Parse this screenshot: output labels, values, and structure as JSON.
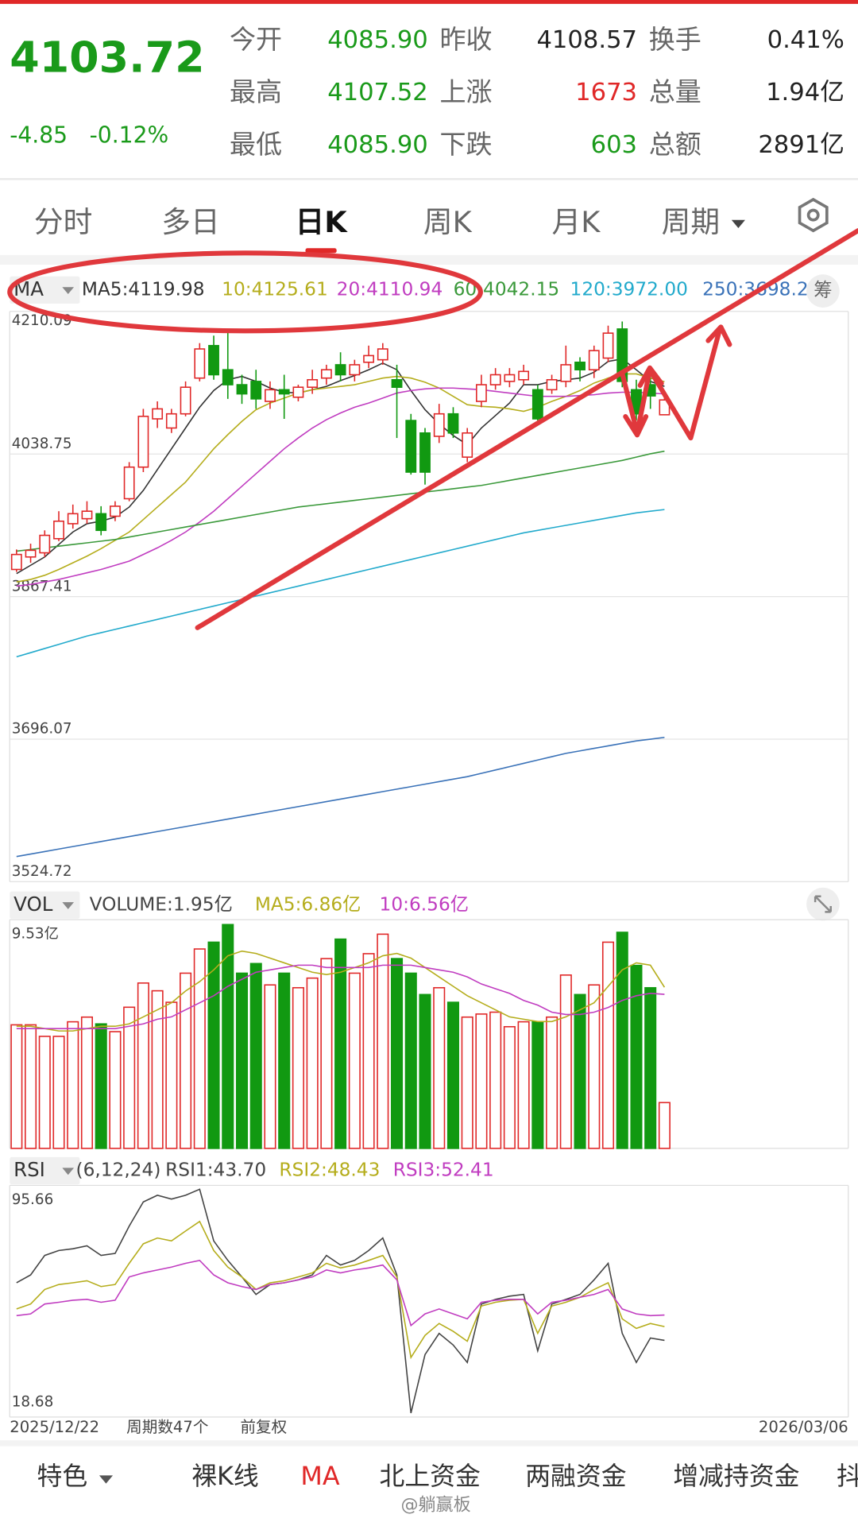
{
  "quote": {
    "price": "4103.72",
    "change": "-4.85",
    "change_pct": "-0.12%",
    "stats": [
      [
        {
          "label": "今开",
          "value": "4085.90",
          "color": "#1a9a1a"
        },
        {
          "label": "昨收",
          "value": "4108.57",
          "color": "#222"
        },
        {
          "label": "换手",
          "value": "0.41%",
          "color": "#222"
        }
      ],
      [
        {
          "label": "最高",
          "value": "4107.52",
          "color": "#1a9a1a"
        },
        {
          "label": "上涨",
          "value": "1673",
          "color": "#e02828"
        },
        {
          "label": "总量",
          "value": "1.94亿",
          "color": "#222"
        }
      ],
      [
        {
          "label": "最低",
          "value": "4085.90",
          "color": "#1a9a1a"
        },
        {
          "label": "下跌",
          "value": "603",
          "color": "#1a9a1a"
        },
        {
          "label": "总额",
          "value": "2891亿",
          "color": "#222"
        }
      ]
    ]
  },
  "tabs": [
    "分时",
    "多日",
    "日K",
    "周K",
    "月K",
    "周期"
  ],
  "kline": {
    "selector": "MA",
    "chip_button": "筹",
    "ylim": [
      3524.72,
      4210.09
    ],
    "yticks": [
      4210.09,
      4038.75,
      3867.41,
      3696.07,
      3524.72
    ],
    "candles": {
      "open": [
        3900,
        3915,
        3920,
        3937,
        3955,
        3961,
        3967,
        3964,
        3985,
        4023,
        4081,
        4070,
        4087,
        4130,
        4169,
        4140,
        4122,
        4126,
        4102,
        4116,
        4107,
        4119,
        4130,
        4146,
        4134,
        4149,
        4152,
        4128,
        4079,
        4064,
        4060,
        4087,
        4035,
        4102,
        4122,
        4126,
        4128,
        4116,
        4116,
        4126,
        4149,
        4140,
        4154,
        4189,
        4116,
        4122,
        4085.9
      ],
      "close": [
        3918,
        3923,
        3941,
        3958,
        3967,
        3970,
        3947,
        3976,
        4023,
        4084,
        4093,
        4087,
        4119,
        4165,
        4134,
        4122,
        4111,
        4105,
        4116,
        4111,
        4119,
        4128,
        4140,
        4134,
        4146,
        4157,
        4165,
        4119,
        4017,
        4017,
        4087,
        4064,
        4064,
        4122,
        4134,
        4134,
        4138,
        4081,
        4128,
        4146,
        4140,
        4163,
        4184,
        4126,
        4087,
        4108.57,
        4103.72
      ],
      "high": [
        3924,
        3931,
        3947,
        3970,
        3978,
        3982,
        3976,
        3982,
        4029,
        4093,
        4102,
        4093,
        4126,
        4172,
        4181,
        4187,
        4134,
        4140,
        4126,
        4134,
        4122,
        4140,
        4146,
        4161,
        4152,
        4169,
        4172,
        4146,
        4087,
        4070,
        4099,
        4095,
        4070,
        4134,
        4142,
        4142,
        4146,
        4122,
        4134,
        4169,
        4155,
        4169,
        4193,
        4198,
        4128,
        4134,
        4107.52
      ],
      "low": [
        3897,
        3908,
        3915,
        3934,
        3949,
        3955,
        3941,
        3958,
        3982,
        4017,
        4070,
        4064,
        4084,
        4126,
        4128,
        4105,
        4099,
        4093,
        4093,
        4081,
        4102,
        4111,
        4122,
        4126,
        4126,
        4142,
        4146,
        4058,
        4014,
        4002,
        4052,
        4058,
        4029,
        4095,
        4116,
        4119,
        4122,
        4079,
        4111,
        4119,
        4126,
        4130,
        4149,
        4119,
        4079,
        4093,
        4085.9
      ]
    },
    "ma_series": [
      {
        "label": "MA5:4119.98",
        "color": "#333333",
        "values": [
          3895,
          3905,
          3915,
          3930,
          3945,
          3955,
          3958,
          3963,
          3975,
          3995,
          4020,
          4045,
          4070,
          4095,
          4115,
          4128,
          4132,
          4126,
          4118,
          4113,
          4112,
          4116,
          4120,
          4127,
          4133,
          4140,
          4148,
          4140,
          4115,
          4092,
          4075,
          4061,
          4050,
          4070,
          4085,
          4100,
          4122,
          4122,
          4126,
          4128,
          4130,
          4137,
          4150,
          4153,
          4140,
          4126,
          4119.98
        ]
      },
      {
        "label": "10:4125.61",
        "color": "#b5ad1c",
        "values": [
          3885,
          3888,
          3893,
          3900,
          3908,
          3916,
          3925,
          3935,
          3945,
          3960,
          3975,
          3990,
          4005,
          4025,
          4045,
          4062,
          4078,
          4092,
          4100,
          4106,
          4112,
          4116,
          4118,
          4120,
          4122,
          4126,
          4130,
          4132,
          4130,
          4125,
          4118,
          4108,
          4098,
          4096,
          4095,
          4093,
          4090,
          4095,
          4102,
          4108,
          4115,
          4124,
          4130,
          4135,
          4135,
          4130,
          4125.61
        ]
      },
      {
        "label": "20:4110.94",
        "color": "#c03cc0",
        "values": [
          3880,
          3882,
          3885,
          3888,
          3892,
          3896,
          3900,
          3905,
          3910,
          3918,
          3926,
          3935,
          3945,
          3957,
          3970,
          3985,
          4000,
          4015,
          4030,
          4045,
          4058,
          4070,
          4080,
          4088,
          4095,
          4100,
          4106,
          4112,
          4115,
          4117,
          4118,
          4118,
          4117,
          4116,
          4114,
          4112,
          4110,
          4108,
          4108,
          4108,
          4109,
          4110,
          4112,
          4113,
          4113,
          4112,
          4110.94
        ]
      },
      {
        "label": "60:4042.15",
        "color": "#3a993a",
        "values": [
          3922,
          3924,
          3926,
          3928,
          3930,
          3932,
          3934,
          3936,
          3939,
          3942,
          3945,
          3948,
          3951,
          3954,
          3957,
          3960,
          3963,
          3966,
          3969,
          3972,
          3975,
          3977,
          3979,
          3981,
          3983,
          3985,
          3987,
          3989,
          3991,
          3993,
          3995,
          3997,
          3999,
          4001,
          4004,
          4007,
          4010,
          4013,
          4016,
          4019,
          4022,
          4025,
          4028,
          4031,
          4035,
          4039,
          4042.15
        ]
      },
      {
        "label": "120:3972.00",
        "color": "#22aacc",
        "values": [
          3795,
          3800,
          3805,
          3810,
          3815,
          3820,
          3824,
          3828,
          3832,
          3836,
          3840,
          3844,
          3848,
          3852,
          3856,
          3860,
          3864,
          3868,
          3872,
          3876,
          3880,
          3884,
          3888,
          3892,
          3896,
          3900,
          3904,
          3908,
          3912,
          3916,
          3920,
          3924,
          3928,
          3932,
          3936,
          3940,
          3944,
          3947,
          3950,
          3953,
          3956,
          3959,
          3962,
          3965,
          3968,
          3970,
          3972.0
        ]
      },
      {
        "label": "250:3698.2",
        "color": "#3a72b8",
        "values": [
          3555,
          3558,
          3561,
          3564,
          3567,
          3570,
          3573,
          3576,
          3579,
          3582,
          3585,
          3588,
          3591,
          3594,
          3597,
          3600,
          3603,
          3606,
          3609,
          3612,
          3615,
          3618,
          3621,
          3624,
          3627,
          3630,
          3633,
          3636,
          3639,
          3642,
          3645,
          3648,
          3651,
          3655,
          3659,
          3663,
          3667,
          3671,
          3675,
          3679,
          3682,
          3685,
          3688,
          3691,
          3694,
          3696,
          3698.2
        ]
      }
    ]
  },
  "volume": {
    "selector": "VOL",
    "label": "VOLUME:1.95亿",
    "ylim": [
      0,
      9.53
    ],
    "yticks": [
      {
        "value": 9.53,
        "label": "9.53亿"
      }
    ],
    "values": [
      5.26,
      5.26,
      4.77,
      4.77,
      5.39,
      5.59,
      5.3,
      4.97,
      6.01,
      7.04,
      6.71,
      6.22,
      7.46,
      8.49,
      8.78,
      9.53,
      7.46,
      7.87,
      6.96,
      7.46,
      6.84,
      7.25,
      8.08,
      8.91,
      7.46,
      8.29,
      9.12,
      8.08,
      7.46,
      6.55,
      6.84,
      6.22,
      5.59,
      5.72,
      5.8,
      5.18,
      5.39,
      5.39,
      5.59,
      7.38,
      6.55,
      6.96,
      8.78,
      9.2,
      7.79,
      6.84,
      1.95
    ],
    "ma_series": [
      {
        "label": "MA5:6.86亿",
        "color": "#b5ad1c",
        "values": [
          5.2,
          5.2,
          5.1,
          5.0,
          5.0,
          5.1,
          5.2,
          5.2,
          5.3,
          5.6,
          5.9,
          6.2,
          6.7,
          7.1,
          7.6,
          8.2,
          8.4,
          8.3,
          8.1,
          7.9,
          7.7,
          7.5,
          7.4,
          7.5,
          7.7,
          7.9,
          8.2,
          8.3,
          8.1,
          7.7,
          7.3,
          6.9,
          6.5,
          6.2,
          5.9,
          5.6,
          5.5,
          5.4,
          5.4,
          5.6,
          5.9,
          6.2,
          6.9,
          7.6,
          7.9,
          7.8,
          6.86
        ]
      },
      {
        "label": "10:6.56亿",
        "color": "#c03cc0",
        "values": [
          5.1,
          5.1,
          5.1,
          5.1,
          5.1,
          5.1,
          5.1,
          5.1,
          5.2,
          5.3,
          5.5,
          5.6,
          5.9,
          6.2,
          6.5,
          6.9,
          7.2,
          7.5,
          7.6,
          7.7,
          7.8,
          7.8,
          7.7,
          7.7,
          7.7,
          7.7,
          7.8,
          7.8,
          7.8,
          7.7,
          7.6,
          7.5,
          7.3,
          7.0,
          6.8,
          6.6,
          6.3,
          6.1,
          5.8,
          5.7,
          5.7,
          5.8,
          6.0,
          6.3,
          6.5,
          6.6,
          6.56
        ]
      }
    ]
  },
  "rsi": {
    "selector": "RSI",
    "params": "(6,12,24)",
    "ylim": [
      18.68,
      95.66
    ],
    "yticks": [
      95.66,
      18.68
    ],
    "series": [
      {
        "label": "RSI1:43.70",
        "color": "#444444",
        "values": [
          63.5,
          66.2,
          72.9,
          74.6,
          75.2,
          76.2,
          72.9,
          73.6,
          83.0,
          91.3,
          93.6,
          92.3,
          93.6,
          95.66,
          77.9,
          71.2,
          65.5,
          59.5,
          62.9,
          63.5,
          64.5,
          66.2,
          72.9,
          69.6,
          71.2,
          74.6,
          78.9,
          66.2,
          18.68,
          38.8,
          46.1,
          42.1,
          36.1,
          56.2,
          57.8,
          58.9,
          59.5,
          40.1,
          56.2,
          57.8,
          59.5,
          64.5,
          70.2,
          46.1,
          36.1,
          44.5,
          43.7
        ]
      },
      {
        "label": "RSI2:48.43",
        "color": "#b5ad1c",
        "values": [
          54.5,
          56.2,
          61.2,
          62.9,
          63.5,
          64.2,
          62.2,
          62.9,
          70.2,
          76.9,
          78.9,
          77.9,
          81.3,
          84.6,
          74.6,
          68.9,
          65.5,
          61.2,
          63.5,
          64.2,
          65.5,
          66.9,
          70.2,
          68.6,
          69.6,
          71.2,
          72.9,
          65.5,
          37.8,
          45.4,
          49.5,
          46.8,
          43.4,
          55.5,
          56.8,
          57.5,
          57.8,
          46.1,
          55.5,
          56.8,
          58.5,
          61.2,
          63.5,
          51.1,
          47.8,
          49.5,
          48.43
        ]
      },
      {
        "label": "RSI3:52.41",
        "color": "#c03cc0",
        "values": [
          52.2,
          52.8,
          56.2,
          56.8,
          57.5,
          57.8,
          56.8,
          57.5,
          65.5,
          66.9,
          67.9,
          68.9,
          70.2,
          71.2,
          66.2,
          63.5,
          62.2,
          61.2,
          62.9,
          63.5,
          64.5,
          65.5,
          67.9,
          66.9,
          67.9,
          68.6,
          69.6,
          64.5,
          48.8,
          52.8,
          54.5,
          52.8,
          51.1,
          56.8,
          57.5,
          57.8,
          57.8,
          52.8,
          56.8,
          57.5,
          58.5,
          59.5,
          61.2,
          54.5,
          52.8,
          52.2,
          52.41
        ]
      }
    ]
  },
  "footer": {
    "start_date": "2025/12/22",
    "period_count": "周期数47个",
    "adjust": "前复权",
    "end_date": "2026/03/06"
  },
  "bottom_bar": [
    "特色",
    "裸K线",
    "MA",
    "北上资金",
    "两融资金",
    "增减持资金",
    "抖"
  ],
  "watermark": "@躺赢板"
}
